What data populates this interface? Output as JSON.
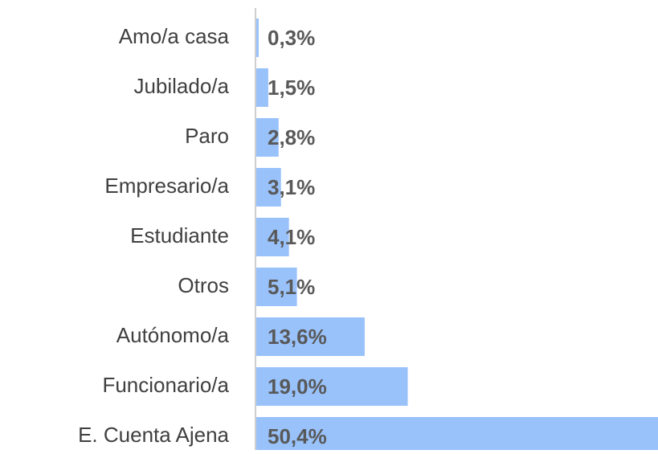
{
  "chart_data": {
    "type": "bar",
    "orientation": "horizontal",
    "categories": [
      "Amo/a casa",
      "Jubilado/a",
      "Paro",
      "Empresario/a",
      "Estudiante",
      "Otros",
      "Autónomo/a",
      "Funcionario/a",
      "E. Cuenta Ajena"
    ],
    "values": [
      0.3,
      1.5,
      2.8,
      3.1,
      4.1,
      5.1,
      13.6,
      19.0,
      50.4
    ],
    "value_labels": [
      "0,3%",
      "1,5%",
      "2,8%",
      "3,1%",
      "4,1%",
      "5,1%",
      "13,6%",
      "19,0%",
      "50,4%"
    ],
    "color": "#99c2fb"
  }
}
